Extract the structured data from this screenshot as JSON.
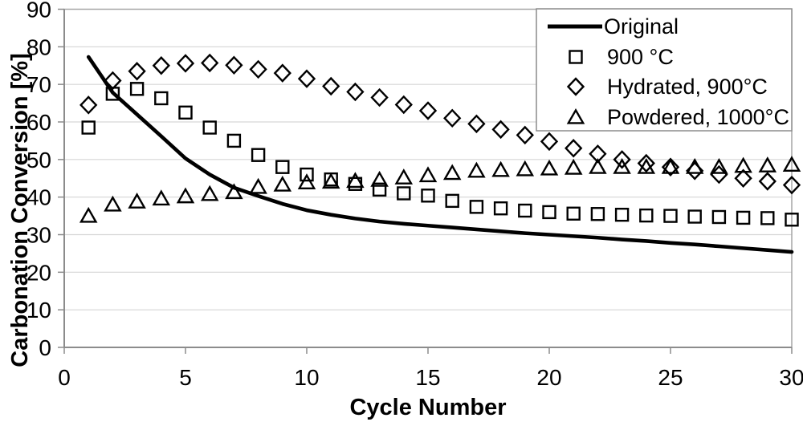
{
  "chart_data": {
    "type": "line+scatter",
    "title": "",
    "xlabel": "Cycle Number",
    "ylabel": "Carbonation Conversion [%]",
    "xlim": [
      0,
      30
    ],
    "ylim": [
      0,
      90
    ],
    "xticks": [
      0,
      5,
      10,
      15,
      20,
      25,
      30
    ],
    "yticks": [
      0,
      10,
      20,
      30,
      40,
      50,
      60,
      70,
      80,
      90
    ],
    "grid": "horizontal-only",
    "legend_position": "top-right",
    "x": [
      1,
      2,
      3,
      4,
      5,
      6,
      7,
      8,
      9,
      10,
      11,
      12,
      13,
      14,
      15,
      16,
      17,
      18,
      19,
      20,
      21,
      22,
      23,
      24,
      25,
      26,
      27,
      28,
      29,
      30
    ],
    "series": [
      {
        "name": "Original",
        "marker": "none",
        "line": "solid",
        "values": [
          77.3,
          67.8,
          62.0,
          56.2,
          50.3,
          46.0,
          42.5,
          40.3,
          38.2,
          36.5,
          35.3,
          34.3,
          33.5,
          32.9,
          32.4,
          31.9,
          31.4,
          30.9,
          30.4,
          30.0,
          29.6,
          29.2,
          28.7,
          28.3,
          27.8,
          27.4,
          26.9,
          26.4,
          25.9,
          25.4
        ]
      },
      {
        "name": "900 °C",
        "marker": "square",
        "line": "none",
        "values": [
          58.5,
          67.5,
          68.8,
          66.3,
          62.5,
          58.5,
          55.0,
          51.2,
          48.0,
          46.0,
          44.7,
          43.5,
          42.0,
          41.0,
          40.4,
          39.0,
          37.4,
          37.0,
          36.4,
          36.0,
          35.6,
          35.5,
          35.3,
          35.1,
          35.0,
          34.8,
          34.7,
          34.5,
          34.4,
          34.0
        ]
      },
      {
        "name": "Hydrated, 900°C",
        "marker": "diamond",
        "line": "none",
        "values": [
          64.5,
          71.0,
          73.5,
          75.0,
          75.6,
          75.7,
          75.1,
          74.0,
          73.0,
          71.5,
          69.5,
          68.0,
          66.5,
          64.6,
          63.0,
          61.0,
          59.5,
          58.0,
          56.5,
          54.8,
          53.0,
          51.5,
          50.0,
          49.0,
          48.0,
          47.0,
          46.0,
          45.0,
          44.2,
          43.2
        ]
      },
      {
        "name": "Powdered, 1000°C",
        "marker": "triangle",
        "line": "none",
        "values": [
          35.0,
          38.0,
          38.8,
          39.6,
          40.2,
          40.8,
          41.3,
          42.7,
          43.3,
          43.9,
          44.1,
          44.3,
          44.6,
          45.2,
          45.8,
          46.4,
          47.0,
          47.2,
          47.4,
          47.6,
          47.8,
          48.0,
          48.0,
          48.0,
          48.0,
          48.0,
          48.0,
          48.3,
          48.4,
          48.6
        ]
      }
    ],
    "colors": {
      "series": "#000000",
      "gridline": "#d6d6d6",
      "axis": "#8c8c8c",
      "plot_border": "#a6a6a6",
      "background": "#ffffff"
    }
  }
}
